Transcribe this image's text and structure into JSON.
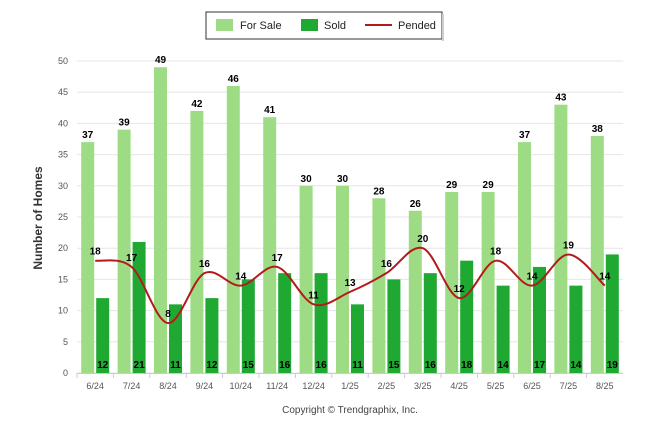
{
  "chart_data": {
    "type": "bar",
    "categories": [
      "6/24",
      "7/24",
      "8/24",
      "9/24",
      "10/24",
      "11/24",
      "12/24",
      "1/25",
      "2/25",
      "3/25",
      "4/25",
      "5/25",
      "6/25",
      "7/25",
      "8/25"
    ],
    "series": [
      {
        "name": "For Sale",
        "type": "bar",
        "color": "#9ddc85",
        "values": [
          37,
          39,
          49,
          42,
          46,
          41,
          30,
          30,
          28,
          26,
          29,
          29,
          37,
          43,
          38
        ]
      },
      {
        "name": "Sold",
        "type": "bar",
        "color": "#1fa832",
        "values": [
          12,
          21,
          11,
          12,
          15,
          16,
          16,
          11,
          15,
          16,
          18,
          14,
          17,
          14,
          19
        ]
      },
      {
        "name": "Pended",
        "type": "line",
        "color": "#b31b1b",
        "values": [
          18,
          17,
          8,
          16,
          14,
          17,
          11,
          13,
          16,
          20,
          12,
          18,
          14,
          19,
          14
        ]
      }
    ],
    "ylabel": "Number of Homes",
    "xlabel": "",
    "ylim": [
      0,
      50
    ],
    "yticks": [
      0,
      5,
      10,
      15,
      20,
      25,
      30,
      35,
      40,
      45,
      50
    ],
    "grid": true,
    "legend_position": "top-center"
  },
  "footer": {
    "credit": "Copyright © Trendgraphix, Inc."
  }
}
